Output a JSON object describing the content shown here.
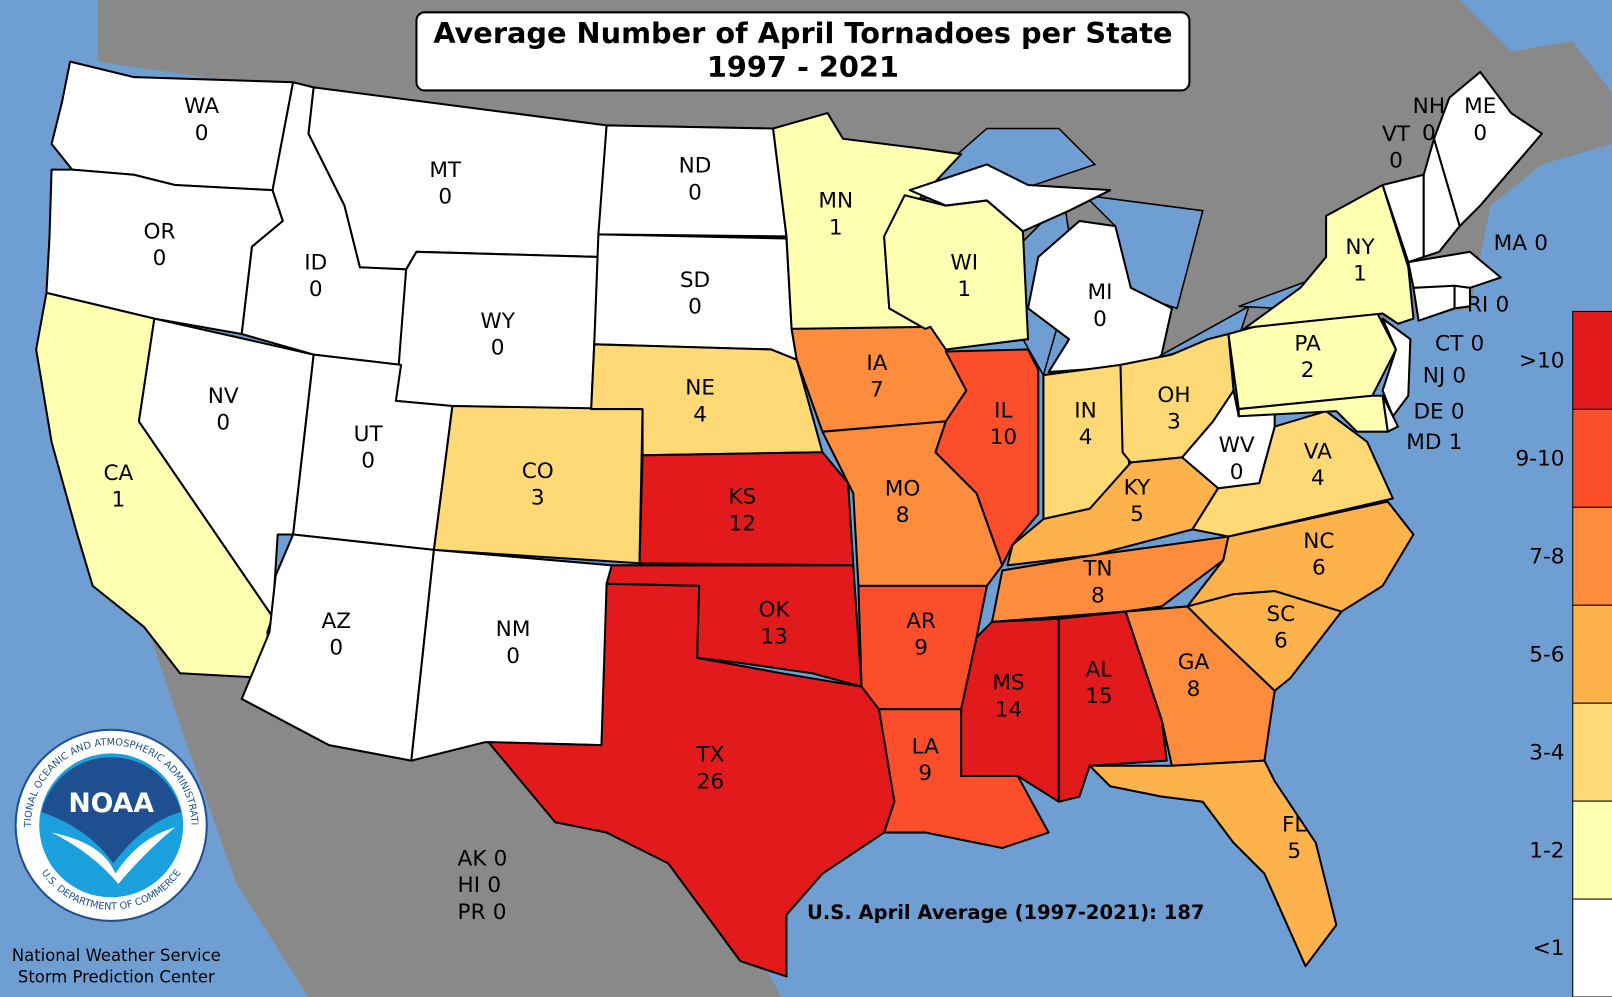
{
  "title": [
    "Average Number of April Tornadoes per State",
    "1997 - 2021"
  ],
  "states": [
    {
      "abbr": "WA",
      "value": 0
    },
    {
      "abbr": "OR",
      "value": 0
    },
    {
      "abbr": "CA",
      "value": 1
    },
    {
      "abbr": "NV",
      "value": 0
    },
    {
      "abbr": "ID",
      "value": 0
    },
    {
      "abbr": "MT",
      "value": 0
    },
    {
      "abbr": "WY",
      "value": 0
    },
    {
      "abbr": "UT",
      "value": 0
    },
    {
      "abbr": "AZ",
      "value": 0
    },
    {
      "abbr": "CO",
      "value": 3
    },
    {
      "abbr": "NM",
      "value": 0
    },
    {
      "abbr": "ND",
      "value": 0
    },
    {
      "abbr": "SD",
      "value": 0
    },
    {
      "abbr": "NE",
      "value": 4
    },
    {
      "abbr": "KS",
      "value": 12
    },
    {
      "abbr": "OK",
      "value": 13
    },
    {
      "abbr": "TX",
      "value": 26
    },
    {
      "abbr": "MN",
      "value": 1
    },
    {
      "abbr": "IA",
      "value": 7
    },
    {
      "abbr": "MO",
      "value": 8
    },
    {
      "abbr": "AR",
      "value": 9
    },
    {
      "abbr": "LA",
      "value": 9
    },
    {
      "abbr": "WI",
      "value": 1
    },
    {
      "abbr": "IL",
      "value": 10
    },
    {
      "abbr": "MI",
      "value": 0
    },
    {
      "abbr": "IN",
      "value": 4
    },
    {
      "abbr": "OH",
      "value": 3
    },
    {
      "abbr": "KY",
      "value": 5
    },
    {
      "abbr": "TN",
      "value": 8
    },
    {
      "abbr": "MS",
      "value": 14
    },
    {
      "abbr": "AL",
      "value": 15
    },
    {
      "abbr": "GA",
      "value": 8
    },
    {
      "abbr": "FL",
      "value": 5
    },
    {
      "abbr": "SC",
      "value": 6
    },
    {
      "abbr": "NC",
      "value": 6
    },
    {
      "abbr": "VA",
      "value": 4
    },
    {
      "abbr": "WV",
      "value": 0
    },
    {
      "abbr": "PA",
      "value": 2
    },
    {
      "abbr": "NY",
      "value": 1
    },
    {
      "abbr": "NJ",
      "value": 0
    },
    {
      "abbr": "DE",
      "value": 0
    },
    {
      "abbr": "MD",
      "value": 1
    },
    {
      "abbr": "VT",
      "value": 0
    },
    {
      "abbr": "NH",
      "value": 0
    },
    {
      "abbr": "ME",
      "value": 0
    },
    {
      "abbr": "MA",
      "value": 0
    },
    {
      "abbr": "CT",
      "value": 0
    },
    {
      "abbr": "RI",
      "value": 0
    }
  ],
  "territories": [
    {
      "abbr": "AK",
      "value": 0
    },
    {
      "abbr": "HI",
      "value": 0
    },
    {
      "abbr": "PR",
      "value": 0
    }
  ],
  "summary": "U.S. April Average (1997-2021): 187",
  "legend": [
    {
      "label": ">10",
      "color": "#e31a1c"
    },
    {
      "label": "9-10",
      "color": "#fc4e2a"
    },
    {
      "label": "7-8",
      "color": "#fd8d3c"
    },
    {
      "label": "5-6",
      "color": "#feb24c"
    },
    {
      "label": "3-4",
      "color": "#fed976"
    },
    {
      "label": "1-2",
      "color": "#ffffb2"
    },
    {
      "label": "<1",
      "color": "#ffffff"
    }
  ],
  "logo": {
    "name": "NOAA",
    "ring_top": "NATIONAL OCEANIC AND ATMOSPHERIC ADMINISTRATION",
    "ring_bottom": "U.S. DEPARTMENT OF COMMERCE"
  },
  "credit": [
    "National Weather Service",
    "Storm Prediction Center"
  ]
}
